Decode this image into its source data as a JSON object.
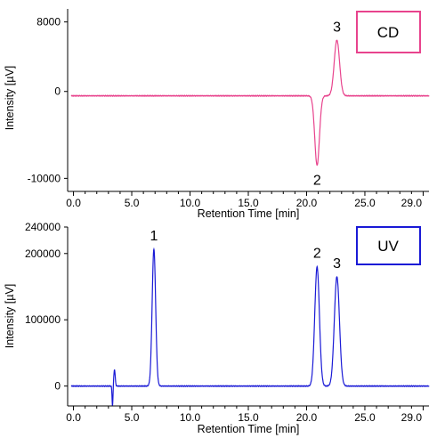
{
  "chart_data": [
    {
      "type": "line",
      "detector": "CD",
      "xlabel": "Retention Time [min]",
      "ylabel": "Intensity [µV]",
      "x_ticks": [
        0.0,
        5.0,
        10.0,
        15.0,
        20.0,
        25.0,
        29.0
      ],
      "x_tick_labels": [
        "0.0",
        "5.0",
        "10.0",
        "15.0",
        "20.0",
        "25.0",
        "29.0"
      ],
      "y_ticks": [
        -10000,
        0,
        8000
      ],
      "y_tick_labels": [
        "-10000",
        "0",
        "8000"
      ],
      "xlim": [
        -0.5,
        30.5
      ],
      "ylim": [
        -11500,
        9500
      ],
      "legend": "CD",
      "legend_position": "top-right",
      "color": "#e8438d",
      "grid": false,
      "baseline": -500,
      "peaks": [
        {
          "label": "2",
          "x": 20.9,
          "y": -8000,
          "sigma": 0.2
        },
        {
          "label": "3",
          "x": 22.6,
          "y": 6400,
          "sigma": 0.23
        }
      ]
    },
    {
      "type": "line",
      "detector": "UV",
      "xlabel": "Retention Time [min]",
      "ylabel": "Intensity [µV]",
      "x_ticks": [
        0.0,
        5.0,
        10.0,
        15.0,
        20.0,
        25.0,
        29.0
      ],
      "x_tick_labels": [
        "0.0",
        "5.0",
        "10.0",
        "15.0",
        "20.0",
        "25.0",
        "29.0"
      ],
      "y_ticks": [
        0,
        100000,
        200000,
        240000
      ],
      "y_tick_labels": [
        "0",
        "100000",
        "200000",
        "240000"
      ],
      "xlim": [
        -0.5,
        30.5
      ],
      "ylim": [
        -30000,
        240000
      ],
      "legend": "UV",
      "legend_position": "top-right",
      "color": "#1a1ad6",
      "grid": false,
      "baseline": 0,
      "peaks": [
        {
          "label": "1",
          "x": 6.9,
          "y": 207000,
          "sigma": 0.15
        },
        {
          "label": "2",
          "x": 20.9,
          "y": 180000,
          "sigma": 0.2
        },
        {
          "label": "3",
          "x": 22.6,
          "y": 165000,
          "sigma": 0.22
        }
      ],
      "disturbance": {
        "x": 3.4,
        "up": 25000,
        "down": -30000
      }
    }
  ]
}
